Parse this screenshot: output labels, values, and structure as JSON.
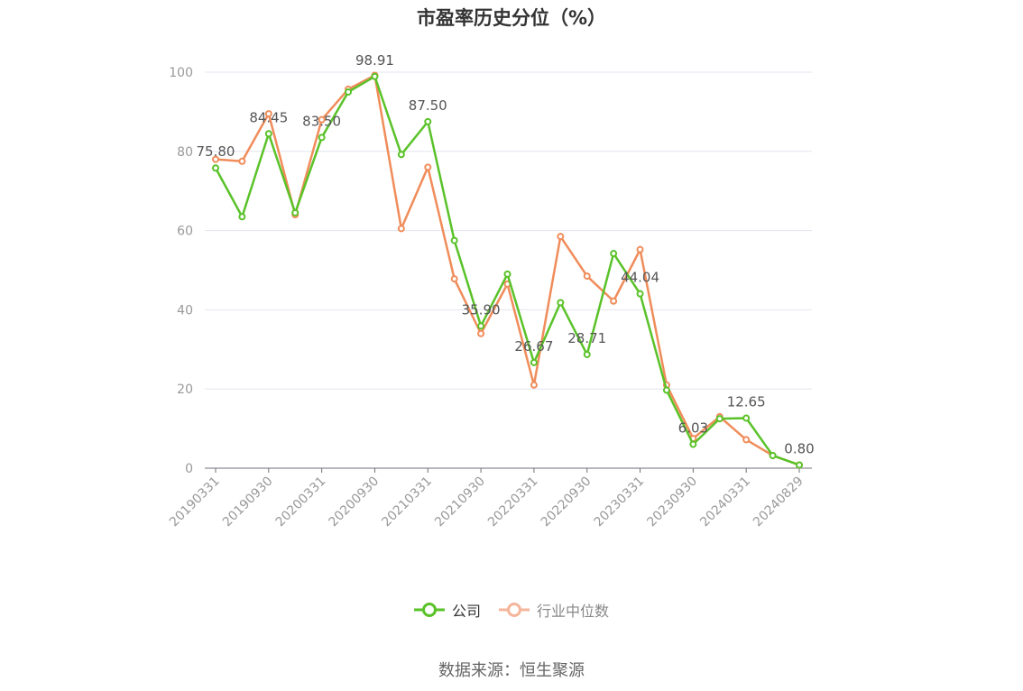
{
  "chart_data": {
    "type": "line",
    "title": "市盈率历史分位（%）",
    "xlabel": "",
    "ylabel": "",
    "ylim": [
      0,
      100
    ],
    "yticks": [
      "0",
      "20",
      "40",
      "60",
      "80",
      "100"
    ],
    "x_tick_labels": [
      "20190331",
      "20190930",
      "20200331",
      "20200930",
      "20210331",
      "20210930",
      "20220331",
      "20220930",
      "20230331",
      "20230930",
      "20240331",
      "20240829"
    ],
    "x": [
      "20190331",
      "20190630",
      "20190930",
      "20191231",
      "20200331",
      "20200630",
      "20200930",
      "20201231",
      "20210331",
      "20210630",
      "20210930",
      "20211231",
      "20220331",
      "20220630",
      "20220930",
      "20221231",
      "20230331",
      "20230630",
      "20230930",
      "20231231",
      "20240331",
      "20240630",
      "20240829"
    ],
    "series": [
      {
        "name": "公司",
        "color": "#5ac229",
        "values": [
          75.8,
          63.5,
          84.45,
          64.5,
          83.5,
          95.0,
          98.91,
          79.2,
          87.5,
          57.5,
          35.9,
          49.0,
          26.67,
          41.8,
          28.71,
          54.2,
          44.04,
          19.7,
          6.03,
          12.5,
          12.65,
          3.2,
          0.8
        ]
      },
      {
        "name": "行业中位数",
        "color": "#f08c5a",
        "values": [
          78.0,
          77.5,
          89.5,
          64.0,
          88.0,
          95.7,
          99.2,
          60.5,
          76.0,
          47.8,
          34.0,
          46.5,
          21.0,
          58.5,
          48.5,
          42.2,
          55.2,
          21.0,
          7.5,
          13.0,
          7.2,
          3.2,
          0.8
        ]
      }
    ],
    "data_labels": [
      {
        "index": 0,
        "text": "75.80"
      },
      {
        "index": 2,
        "text": "84.45"
      },
      {
        "index": 4,
        "text": "83.50"
      },
      {
        "index": 6,
        "text": "98.91"
      },
      {
        "index": 8,
        "text": "87.50"
      },
      {
        "index": 10,
        "text": "35.90"
      },
      {
        "index": 12,
        "text": "26.67"
      },
      {
        "index": 14,
        "text": "28.71"
      },
      {
        "index": 16,
        "text": "44.04"
      },
      {
        "index": 18,
        "text": "6.03"
      },
      {
        "index": 20,
        "text": "12.65"
      },
      {
        "index": 22,
        "text": "0.80"
      }
    ],
    "grid": true,
    "legend_position": "bottom-center"
  },
  "legend": {
    "company": "公司",
    "industry": "行业中位数"
  },
  "source": "数据来源：恒生聚源"
}
